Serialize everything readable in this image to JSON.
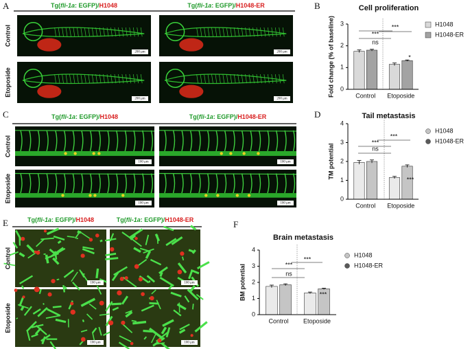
{
  "panels": {
    "labels": [
      "A",
      "B",
      "C",
      "D",
      "E",
      "F"
    ]
  },
  "images": [
    {
      "col_titles": [
        [
          "Tg(",
          "fli-1a",
          ": EGFP)/",
          "H1048"
        ],
        [
          "Tg(",
          "fli-1a",
          ": EGFP)/",
          "H1048-ER"
        ]
      ],
      "row_labels": [
        "Control",
        "Etoposide"
      ],
      "scale_bars": [
        "200 μm",
        "200 μm",
        "200 μm",
        "200 μm"
      ]
    },
    {
      "col_titles": [
        [
          "Tg(",
          "fli-1a",
          ": EGFP)/",
          "H1048"
        ],
        [
          "Tg(",
          "fli-1a",
          ": EGFP)/",
          "H1048-ER"
        ]
      ],
      "row_labels": [
        "Control",
        "Etoposide"
      ],
      "scale_bars": [
        "100 μm",
        "100 μm",
        "100 μm",
        "100 μm"
      ]
    },
    {
      "col_titles": [
        [
          "Tg(",
          "fli-1a",
          ": EGFP)/",
          "H1048"
        ],
        [
          "Tg(",
          "fli-1a",
          ": EGFP)/",
          "H1048-ER"
        ]
      ],
      "row_labels": [
        "Control",
        "Etoposide"
      ],
      "scale_bars": [
        "100 μm",
        "100 μm",
        "100 μm",
        "100 μm"
      ]
    }
  ],
  "chart_data": [
    {
      "type": "bar",
      "title": "Cell proliferation",
      "y_label": "Fold change (% of baseline)",
      "categories": [
        "Control",
        "Etoposide"
      ],
      "series": [
        {
          "name": "H1048",
          "color": "#d9d9d9",
          "values": [
            1.75,
            1.15
          ],
          "errors": [
            0.06,
            0.06
          ]
        },
        {
          "name": "H1048-ER",
          "color": "#a3a3a3",
          "values": [
            1.8,
            1.32
          ],
          "errors": [
            0.04,
            0.03
          ]
        }
      ],
      "ylim": [
        0,
        3
      ],
      "yticks": [
        0,
        1,
        2,
        3
      ],
      "legend_marker": "square",
      "annotations": [
        "***",
        "ns",
        "***",
        "*"
      ]
    },
    {
      "type": "bar",
      "title": "Tail metastasis",
      "y_label": "TM potential",
      "categories": [
        "Control",
        "Etoposide"
      ],
      "series": [
        {
          "name": "H1048",
          "color": "#c4c4c4",
          "values": [
            1.95,
            1.15
          ],
          "errors": [
            0.1,
            0.06
          ]
        },
        {
          "name": "H1048-ER",
          "color": "#5a5a5a",
          "values": [
            2.0,
            1.75
          ],
          "errors": [
            0.08,
            0.07
          ]
        }
      ],
      "ylim": [
        0,
        4
      ],
      "yticks": [
        0,
        1,
        2,
        3,
        4
      ],
      "legend_marker": "circle",
      "annotations": [
        "***",
        "ns",
        "***",
        "***"
      ]
    },
    {
      "type": "bar",
      "title": "Brain metastasis",
      "y_label": "BM potential",
      "categories": [
        "Control",
        "Etoposide"
      ],
      "series": [
        {
          "name": "H1048",
          "color": "#c4c4c4",
          "values": [
            1.75,
            1.35
          ],
          "errors": [
            0.08,
            0.05
          ]
        },
        {
          "name": "H1048-ER",
          "color": "#5a5a5a",
          "values": [
            1.85,
            1.6
          ],
          "errors": [
            0.06,
            0.04
          ]
        }
      ],
      "ylim": [
        0,
        4
      ],
      "yticks": [
        0,
        1,
        2,
        3,
        4
      ],
      "legend_marker": "circle",
      "annotations": [
        "***",
        "ns",
        "***",
        "***"
      ]
    }
  ]
}
